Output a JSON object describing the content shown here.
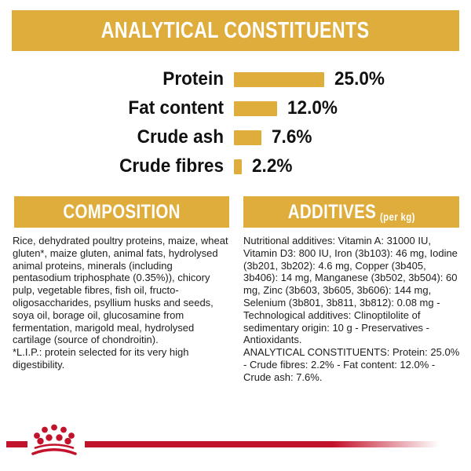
{
  "page": {
    "background": "#ffffff",
    "accent_gold": "#DFAD3C",
    "accent_red": "#C3132C",
    "text_color": "#1d1d1b"
  },
  "header": {
    "title": "ANALYTICAL CONSTITUENTS"
  },
  "chart_data": {
    "type": "bar",
    "orientation": "horizontal",
    "title": "ANALYTICAL CONSTITUENTS",
    "categories": [
      "Protein",
      "Fat content",
      "Crude ash",
      "Crude fibres"
    ],
    "values": [
      25.0,
      12.0,
      7.6,
      2.2
    ],
    "value_labels": [
      "25.0%",
      "12.0%",
      "7.6%",
      "2.2%"
    ],
    "unit": "%",
    "xlim": [
      0,
      25
    ],
    "bar_color": "#DFAD3C",
    "grid": false,
    "legend": false
  },
  "composition": {
    "title": "COMPOSITION",
    "body": "Rice, dehydrated poultry proteins, maize, wheat gluten*, maize gluten, animal fats, hydrolysed animal proteins, minerals (including pentasodium triphosphate (0.35%)), chicory pulp, vegetable fibres, fish oil, fructo-oligosaccharides, psyllium husks and seeds, soya oil, borage oil, glucosamine from fermentation, marigold meal, hydrolysed cartilage (source of chondroitin).",
    "footnote": "*L.I.P.: protein selected for its very high digestibility."
  },
  "additives": {
    "title": "ADDITIVES",
    "title_suffix": "(per kg)",
    "body": "Nutritional additives: Vitamin A: 31000 IU, Vitamin D3: 800 IU, Iron (3b103): 46 mg, Iodine (3b201, 3b202): 4.6 mg, Copper (3b405, 3b406): 14 mg, Manganese (3b502, 3b504): 60 mg, Zinc (3b603, 3b605, 3b606): 144 mg, Selenium (3b801, 3b811, 3b812): 0.08 mg - Technological additives: Clinoptilolite of sedimentary origin: 10 g - Preservatives - Antioxidants.",
    "analytical": "ANALYTICAL CONSTITUENTS: Protein: 25.0% - Crude fibres: 2.2% - Fat content: 12.0% - Crude ash: 7.6%."
  },
  "footer": {
    "logo": "royal-canin-crown"
  }
}
